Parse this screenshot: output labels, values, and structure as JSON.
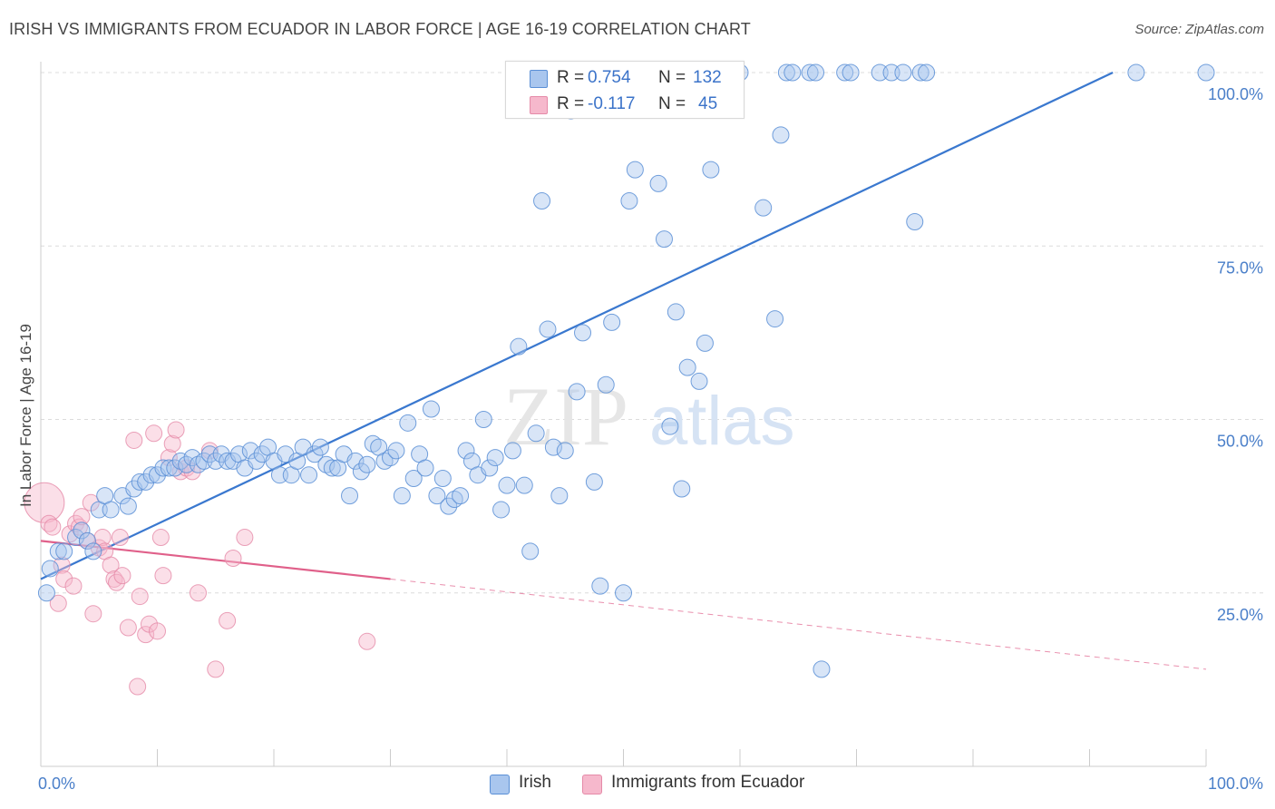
{
  "title": "IRISH VS IMMIGRANTS FROM ECUADOR IN LABOR FORCE | AGE 16-19 CORRELATION CHART",
  "source": "Source: ZipAtlas.com",
  "legend": {
    "row1": {
      "r_label": "R =",
      "r_value": "0.754",
      "n_label": "N =",
      "n_value": "132"
    },
    "row2": {
      "r_label": "R =",
      "r_value": "-0.117",
      "n_label": "N =",
      "n_value": "45"
    }
  },
  "bottom_legend": {
    "irish": "Irish",
    "ecuador": "Immigrants from Ecuador"
  },
  "colors": {
    "irish_fill": "#a9c6ee",
    "irish_stroke": "#5a8fd6",
    "irish_line": "#3a78cf",
    "ecuador_fill": "#f6b8cc",
    "ecuador_stroke": "#e58aa8",
    "ecuador_line": "#e0608a",
    "tick_text": "#4a7fc9",
    "grid": "#dcdcdc"
  },
  "chart_data": {
    "type": "scatter",
    "title": "IRISH VS IMMIGRANTS FROM ECUADOR IN LABOR FORCE | AGE 16-19 CORRELATION CHART",
    "ylabel": "In Labor Force | Age 16-19",
    "xlabel": "",
    "xlim": [
      0,
      100
    ],
    "ylim": [
      0,
      102
    ],
    "x_tick_labels": [
      "0.0%",
      "100.0%"
    ],
    "y_ticks": [
      25,
      50,
      75,
      100
    ],
    "y_tick_labels": [
      "25.0%",
      "50.0%",
      "75.0%",
      "100.0%"
    ],
    "watermark": {
      "zip": "ZIP",
      "atlas": "atlas"
    },
    "series": [
      {
        "name": "Irish",
        "r": 0.754,
        "n": 132,
        "trend": {
          "x0": 0,
          "y0": 27,
          "x1": 92,
          "y1": 100
        },
        "points": [
          [
            0.5,
            25
          ],
          [
            0.8,
            28.5
          ],
          [
            1.5,
            31
          ],
          [
            2,
            31
          ],
          [
            3,
            33
          ],
          [
            3.5,
            34
          ],
          [
            4,
            32.5
          ],
          [
            4.5,
            31
          ],
          [
            5,
            37
          ],
          [
            5.5,
            39
          ],
          [
            6,
            37
          ],
          [
            7,
            39
          ],
          [
            7.5,
            37.5
          ],
          [
            8,
            40
          ],
          [
            8.5,
            41
          ],
          [
            9,
            41
          ],
          [
            9.5,
            42
          ],
          [
            10,
            42
          ],
          [
            10.5,
            43
          ],
          [
            11,
            43
          ],
          [
            11.5,
            43
          ],
          [
            12,
            44
          ],
          [
            12.5,
            43.5
          ],
          [
            13,
            44.5
          ],
          [
            13.5,
            43.5
          ],
          [
            14,
            44
          ],
          [
            14.5,
            45
          ],
          [
            15,
            44
          ],
          [
            15.5,
            45
          ],
          [
            16,
            44
          ],
          [
            16.5,
            44
          ],
          [
            17,
            45
          ],
          [
            17.5,
            43
          ],
          [
            18,
            45.5
          ],
          [
            18.5,
            44
          ],
          [
            19,
            45
          ],
          [
            19.5,
            46
          ],
          [
            20,
            44
          ],
          [
            20.5,
            42
          ],
          [
            21,
            45
          ],
          [
            21.5,
            42
          ],
          [
            22,
            44
          ],
          [
            22.5,
            46
          ],
          [
            23,
            42
          ],
          [
            23.5,
            45
          ],
          [
            24,
            46
          ],
          [
            24.5,
            43.5
          ],
          [
            25,
            43
          ],
          [
            25.5,
            43
          ],
          [
            26,
            45
          ],
          [
            26.5,
            39
          ],
          [
            27,
            44
          ],
          [
            27.5,
            42.5
          ],
          [
            28,
            43.5
          ],
          [
            28.5,
            46.5
          ],
          [
            29,
            46
          ],
          [
            29.5,
            44
          ],
          [
            30,
            44.5
          ],
          [
            30.5,
            45.5
          ],
          [
            31,
            39
          ],
          [
            31.5,
            49.5
          ],
          [
            32,
            41.5
          ],
          [
            32.5,
            45
          ],
          [
            33,
            43
          ],
          [
            33.5,
            51.5
          ],
          [
            34,
            39
          ],
          [
            34.5,
            41.5
          ],
          [
            35,
            37.5
          ],
          [
            35.5,
            38.5
          ],
          [
            36,
            39
          ],
          [
            36.5,
            45.5
          ],
          [
            37,
            44
          ],
          [
            37.5,
            42
          ],
          [
            38,
            50
          ],
          [
            38.5,
            43
          ],
          [
            39,
            44.5
          ],
          [
            39.5,
            37
          ],
          [
            40,
            40.5
          ],
          [
            40.5,
            45.5
          ],
          [
            41,
            60.5
          ],
          [
            41.5,
            40.5
          ],
          [
            42,
            31
          ],
          [
            42.5,
            48
          ],
          [
            43,
            81.5
          ],
          [
            43.5,
            63
          ],
          [
            44,
            46
          ],
          [
            44.5,
            39
          ],
          [
            45,
            45.5
          ],
          [
            45.5,
            94.5
          ],
          [
            46,
            54
          ],
          [
            46.5,
            62.5
          ],
          [
            47,
            100
          ],
          [
            47.5,
            41
          ],
          [
            48,
            26
          ],
          [
            48.5,
            55
          ],
          [
            49,
            64
          ],
          [
            49.5,
            100
          ],
          [
            50,
            25
          ],
          [
            50.5,
            81.5
          ],
          [
            51,
            86
          ],
          [
            51.5,
            100
          ],
          [
            52,
            100
          ],
          [
            53,
            84
          ],
          [
            53.5,
            76
          ],
          [
            54,
            49
          ],
          [
            54.5,
            65.5
          ],
          [
            55,
            40
          ],
          [
            55.5,
            57.5
          ],
          [
            56,
            100
          ],
          [
            56.5,
            55.5
          ],
          [
            57,
            61
          ],
          [
            57.5,
            86
          ],
          [
            58,
            100
          ],
          [
            60,
            100
          ],
          [
            62,
            80.5
          ],
          [
            63,
            64.5
          ],
          [
            63.5,
            91
          ],
          [
            64,
            100
          ],
          [
            64.5,
            100
          ],
          [
            66,
            100
          ],
          [
            66.5,
            100
          ],
          [
            67,
            14
          ],
          [
            69,
            100
          ],
          [
            69.5,
            100
          ],
          [
            72,
            100
          ],
          [
            73,
            100
          ],
          [
            74,
            100
          ],
          [
            75,
            78.5
          ],
          [
            75.5,
            100
          ],
          [
            76,
            100
          ],
          [
            94,
            100
          ],
          [
            100,
            100
          ]
        ]
      },
      {
        "name": "Immigrants from Ecuador",
        "r": -0.117,
        "n": 45,
        "trend": {
          "x0": 0,
          "y0": 32.5,
          "x1": 30,
          "y1": 27,
          "dash_x1": 100,
          "dash_y1": 14
        },
        "points": [
          [
            0.3,
            38
          ],
          [
            0.7,
            35
          ],
          [
            1,
            34.5
          ],
          [
            1.5,
            23.5
          ],
          [
            1.8,
            29
          ],
          [
            2,
            27
          ],
          [
            2.5,
            33.5
          ],
          [
            2.8,
            26
          ],
          [
            3,
            35
          ],
          [
            3.3,
            34.5
          ],
          [
            3.5,
            36
          ],
          [
            4,
            32.5
          ],
          [
            4.3,
            38
          ],
          [
            4.5,
            22
          ],
          [
            5,
            31.5
          ],
          [
            5.3,
            33
          ],
          [
            5.5,
            31
          ],
          [
            6,
            29
          ],
          [
            6.3,
            27
          ],
          [
            6.5,
            26.5
          ],
          [
            6.8,
            33
          ],
          [
            7,
            27.5
          ],
          [
            7.5,
            20
          ],
          [
            8,
            47
          ],
          [
            8.3,
            11.5
          ],
          [
            8.5,
            24.5
          ],
          [
            9,
            19
          ],
          [
            9.3,
            20.5
          ],
          [
            9.7,
            48
          ],
          [
            10,
            19.5
          ],
          [
            10.3,
            33
          ],
          [
            10.5,
            27.5
          ],
          [
            11,
            44.5
          ],
          [
            11.3,
            46.5
          ],
          [
            11.6,
            48.5
          ],
          [
            12,
            42.5
          ],
          [
            12.5,
            43
          ],
          [
            13,
            42.5
          ],
          [
            13.5,
            25
          ],
          [
            14.5,
            45.5
          ],
          [
            15,
            14
          ],
          [
            16,
            21
          ],
          [
            16.5,
            30
          ],
          [
            17.5,
            33
          ],
          [
            28,
            18
          ]
        ]
      }
    ]
  }
}
